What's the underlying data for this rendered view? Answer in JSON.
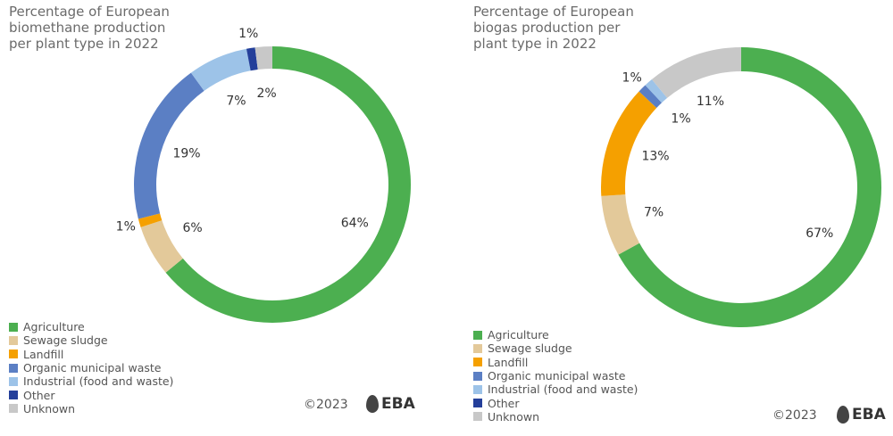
{
  "chart_data": [
    {
      "type": "pie",
      "title": "Percentage of European biomethane production per plant type in 2022",
      "categories": [
        "Agriculture",
        "Sewage sludge",
        "Landfill",
        "Organic municipal waste",
        "Industrial (food and waste)",
        "Other",
        "Unknown"
      ],
      "values": [
        64,
        6,
        1,
        19,
        7,
        1,
        2
      ],
      "value_labels": [
        "64%",
        "6%",
        "1%",
        "19%",
        "7%",
        "1%",
        "2%"
      ],
      "colors": [
        "#4caf50",
        "#e3c99a",
        "#f5a000",
        "#5b7fc4",
        "#9dc3e8",
        "#243f9a",
        "#c8c8c8"
      ],
      "copyright": "©2023",
      "logo": "EBA"
    },
    {
      "type": "pie",
      "title": "Percentage of European biogas production per plant type in 2022",
      "categories": [
        "Agriculture",
        "Sewage sludge",
        "Landfill",
        "Organic municipal waste",
        "Industrial (food and waste)",
        "Other",
        "Unknown"
      ],
      "values": [
        67,
        7,
        13,
        1,
        1,
        0,
        11
      ],
      "value_labels": [
        "67%",
        "7%",
        "13%",
        "1%",
        "1%",
        null,
        "11%"
      ],
      "colors": [
        "#4caf50",
        "#e3c99a",
        "#f5a000",
        "#5b7fc4",
        "#9dc3e8",
        "#243f9a",
        "#c8c8c8"
      ],
      "copyright": "©2023",
      "logo": "EBA"
    }
  ]
}
